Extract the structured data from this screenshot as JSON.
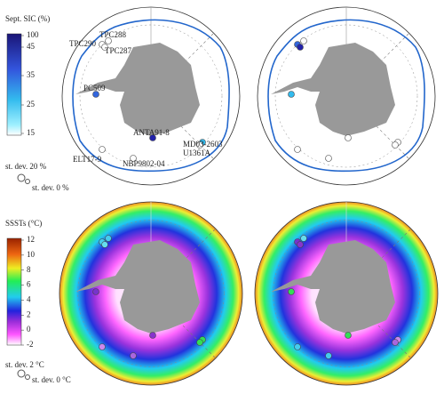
{
  "sic_colorbar": {
    "title": "Sept. SIC (%)",
    "ticks": [
      100,
      45,
      35,
      25,
      15
    ]
  },
  "sic_legend": {
    "large": "st. dev. 20 %",
    "small": "st. dev. 0 %"
  },
  "sites": [
    "TPC288",
    "TPC290",
    "TPC287",
    "PC509",
    "ANTA91-8",
    "MD03-2603",
    "U1361A",
    "ELT17-9",
    "NBP9802-04"
  ],
  "sst_colorbar": {
    "title": "SSSTs (°C)",
    "ticks": [
      12,
      10,
      8,
      6,
      4,
      2,
      0,
      -2
    ]
  },
  "sst_legend": {
    "large": "st. dev. 2 °C",
    "small": "st. dev. 0 °C"
  }
}
